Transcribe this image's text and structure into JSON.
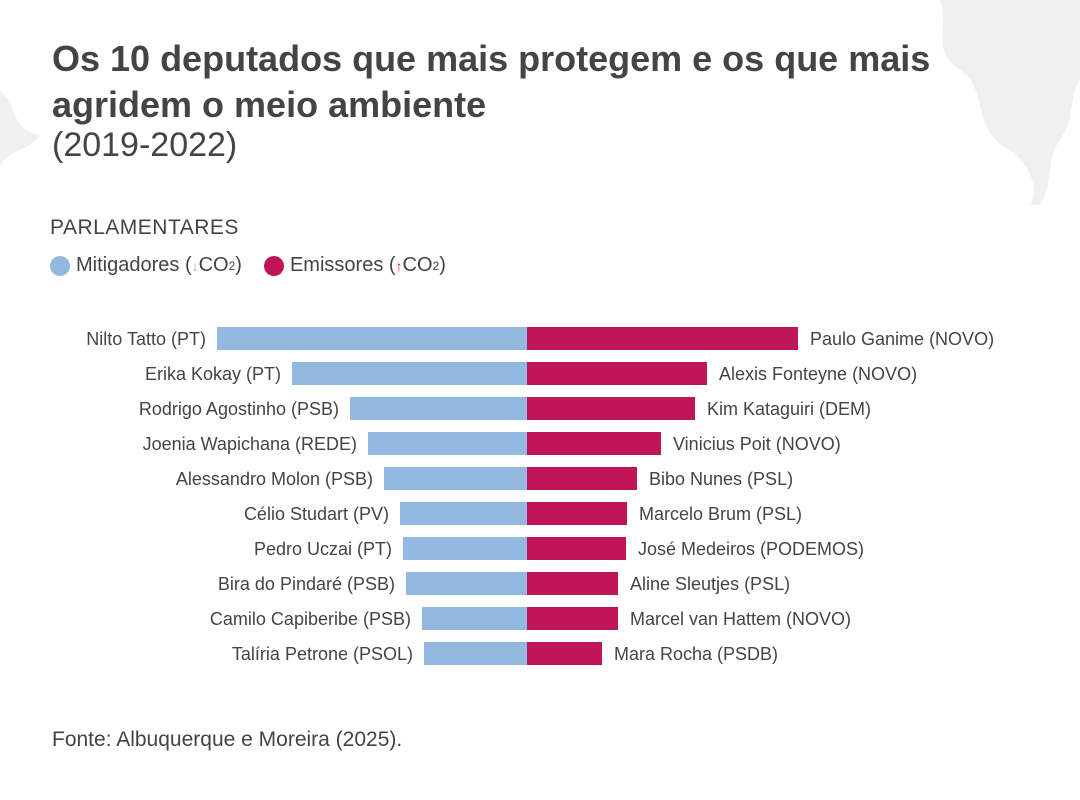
{
  "title": "Os 10 deputados que mais protegem e os que mais agridem o meio ambiente",
  "subtitle": "(2019-2022)",
  "legend_heading": "PARLAMENTARES",
  "source": "Fonte: Albuquerque e Moreira (2025).",
  "chart_data": {
    "type": "bar",
    "orientation": "diverging-horizontal",
    "note": "No value axis shown; values are relative bar lengths",
    "legend": [
      {
        "name": "Mitigadores",
        "suffix": "CO",
        "sup": "2",
        "arrow": "↓",
        "color": "#93b9e0"
      },
      {
        "name": "Emissores",
        "suffix": "CO",
        "sup": "2",
        "arrow": "↑",
        "color": "#be1558"
      }
    ],
    "series": [
      {
        "name": "Mitigadores",
        "color": "#93b9e0",
        "side": "left",
        "categories": [
          "Nilto Tatto (PT)",
          "Erika Kokay (PT)",
          "Rodrigo Agostinho (PSB)",
          "Joenia Wapichana (REDE)",
          "Alessandro Molon (PSB)",
          "Célio Studart (PV)",
          "Pedro Uczai (PT)",
          "Bira do Pindaré (PSB)",
          "Camilo Capiberibe (PSB)",
          "Talíria Petrone (PSOL)"
        ],
        "values": [
          310,
          235,
          177,
          159,
          143,
          127,
          124,
          121,
          105,
          103
        ]
      },
      {
        "name": "Emissores",
        "color": "#be1558",
        "side": "right",
        "categories": [
          "Paulo Ganime (NOVO)",
          "Alexis Fonteyne (NOVO)",
          "Kim Kataguiri (DEM)",
          "Vinicius Poit (NOVO)",
          "Bibo Nunes (PSL)",
          "Marcelo Brum (PSL)",
          "José Medeiros (PODEMOS)",
          "Aline Sleutjes (PSL)",
          "Marcel van Hattem (NOVO)",
          "Mara Rocha (PSDB)"
        ],
        "values": [
          271,
          180,
          168,
          134,
          110,
          100,
          99,
          91,
          91,
          75
        ]
      }
    ]
  }
}
